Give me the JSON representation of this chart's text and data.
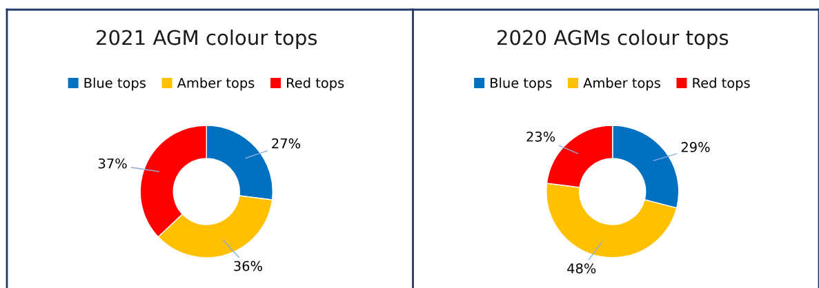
{
  "chart_data": [
    {
      "type": "donut",
      "title": "2021 AGM colour tops",
      "categories": [
        "Blue tops",
        "Amber tops",
        "Red tops"
      ],
      "values": [
        27,
        36,
        37
      ],
      "value_labels": [
        "27%",
        "36%",
        "37%"
      ],
      "colors": [
        "#0070c0",
        "#ffc000",
        "#ff0000"
      ],
      "legend": "top"
    },
    {
      "type": "donut",
      "title": "2020 AGMs colour tops",
      "categories": [
        "Blue tops",
        "Amber tops",
        "Red tops"
      ],
      "values": [
        29,
        48,
        23
      ],
      "value_labels": [
        "29%",
        "48%",
        "23%"
      ],
      "colors": [
        "#0070c0",
        "#ffc000",
        "#ff0000"
      ],
      "legend": "top"
    }
  ]
}
